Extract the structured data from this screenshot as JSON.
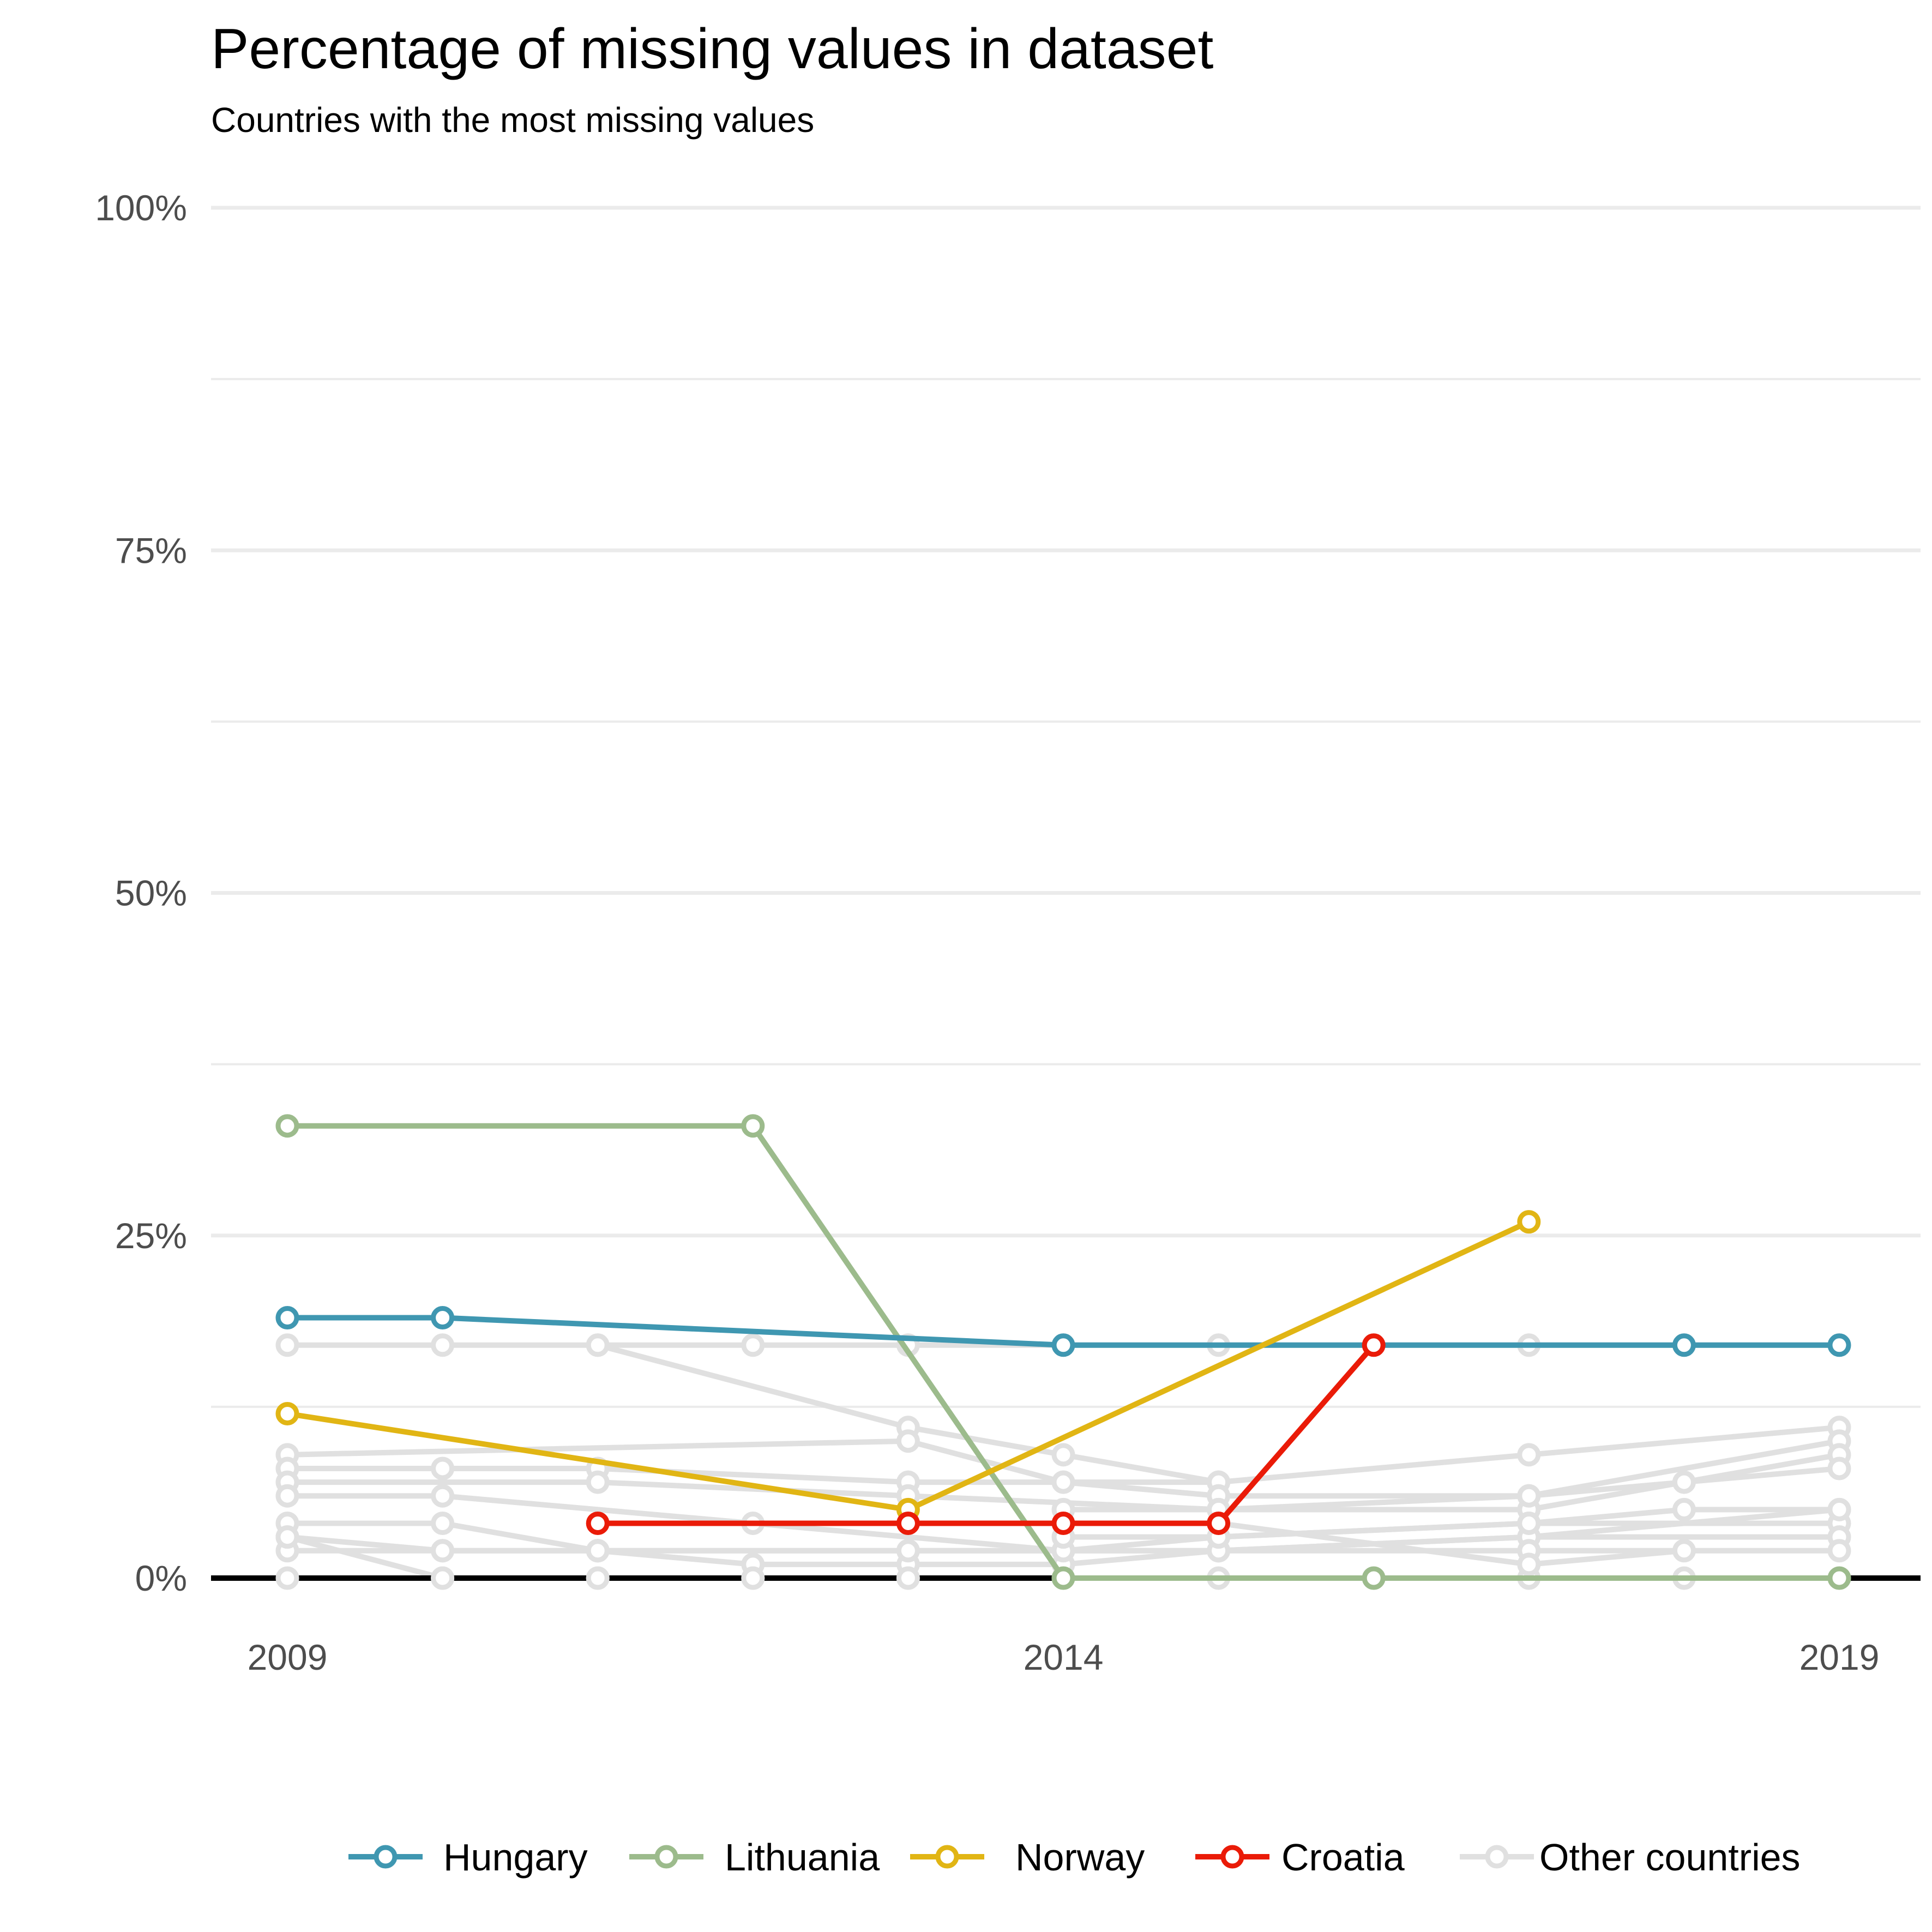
{
  "chart_data": {
    "type": "line",
    "title": "Percentage of missing values in dataset",
    "subtitle": "Countries with the most missing values",
    "xlabel": "",
    "ylabel": "",
    "xlim": [
      2008.5,
      2019.5
    ],
    "ylim": [
      0,
      100
    ],
    "x_ticks": [
      2009,
      2014,
      2019
    ],
    "x_tick_labels": [
      "2009",
      "2014",
      "2019"
    ],
    "y_ticks": [
      0,
      25,
      50,
      75,
      100
    ],
    "y_tick_labels": [
      "0%",
      "25%",
      "50%",
      "75%",
      "100%"
    ],
    "y_minor_ticks": [
      12.5,
      37.5,
      62.5,
      87.5
    ],
    "grid": true,
    "legend_position": "bottom",
    "series": [
      {
        "name": "Other countries",
        "color": "#e0e0e0",
        "background": true,
        "lines": [
          {
            "x": [
              2009,
              2010,
              2011,
              2012,
              2013,
              2014,
              2015,
              2016,
              2017,
              2018,
              2019
            ],
            "y": [
              17,
              17,
              17,
              17,
              17,
              17,
              17,
              17,
              17,
              17,
              17
            ]
          },
          {
            "x": [
              2011,
              2013,
              2014,
              2015
            ],
            "y": [
              17,
              11,
              9,
              7
            ]
          },
          {
            "x": [
              2009,
              2013,
              2014,
              2015,
              2017,
              2019
            ],
            "y": [
              9,
              10,
              7,
              7,
              9,
              11
            ]
          },
          {
            "x": [
              2009,
              2010,
              2011,
              2013,
              2014,
              2015,
              2017,
              2019
            ],
            "y": [
              8,
              8,
              8,
              7,
              7,
              6,
              6,
              10
            ]
          },
          {
            "x": [
              2009,
              2011,
              2013,
              2015,
              2017,
              2018,
              2019
            ],
            "y": [
              7,
              7,
              6,
              5,
              5,
              7,
              9
            ]
          },
          {
            "x": [
              2009,
              2010,
              2012,
              2014,
              2015,
              2017,
              2019
            ],
            "y": [
              6,
              6,
              4,
              2,
              2,
              3,
              5
            ]
          },
          {
            "x": [
              2009,
              2010,
              2011,
              2013,
              2014,
              2015,
              2017,
              2019
            ],
            "y": [
              4,
              4,
              2,
              2,
              2,
              3,
              4,
              4
            ]
          },
          {
            "x": [
              2009,
              2010,
              2011,
              2012,
              2013,
              2014,
              2015,
              2017,
              2019
            ],
            "y": [
              3,
              2,
              2,
              1,
              1,
              1,
              2,
              3,
              3
            ]
          },
          {
            "x": [
              2009,
              2010,
              2011,
              2013,
              2014,
              2015,
              2017,
              2019
            ],
            "y": [
              2,
              2,
              2,
              2,
              2,
              2,
              2,
              2
            ]
          },
          {
            "x": [
              2009,
              2010,
              2011,
              2012,
              2013
            ],
            "y": [
              3,
              0,
              0,
              0,
              0
            ]
          },
          {
            "x": [
              2009,
              2010,
              2011,
              2012,
              2013,
              2014,
              2015,
              2016,
              2017,
              2018,
              2019
            ],
            "y": [
              0,
              0,
              0,
              0,
              0,
              0,
              0,
              0,
              0,
              0,
              0
            ]
          },
          {
            "x": [
              2014,
              2015,
              2017,
              2018,
              2019
            ],
            "y": [
              3,
              3,
              4,
              5,
              5
            ]
          },
          {
            "x": [
              2015,
              2017,
              2018
            ],
            "y": [
              4,
              1,
              2
            ]
          },
          {
            "x": [
              2014,
              2015,
              2017,
              2019
            ],
            "y": [
              5,
              5,
              6,
              8
            ]
          }
        ]
      },
      {
        "name": "Hungary",
        "color": "#3f97b1",
        "x": [
          2009,
          2010,
          2014,
          2019,
          2018
        ],
        "y": [
          19,
          19,
          17,
          17,
          17
        ],
        "points_x": [
          2009,
          2010,
          2014,
          2018,
          2019
        ],
        "points_y": [
          19,
          19,
          17,
          17,
          17
        ]
      },
      {
        "name": "Lithuania",
        "color": "#9cbb8c",
        "points_x": [
          2009,
          2012,
          2014,
          2016,
          2019
        ],
        "points_y": [
          33,
          33,
          0,
          0,
          0
        ]
      },
      {
        "name": "Norway",
        "color": "#e1b514",
        "points_x": [
          2009,
          2013,
          2017
        ],
        "points_y": [
          12,
          5,
          26
        ]
      },
      {
        "name": "Croatia",
        "color": "#ea1b08",
        "points_x": [
          2011,
          2013,
          2014,
          2015,
          2016
        ],
        "points_y": [
          4,
          4,
          4,
          4,
          17
        ]
      }
    ]
  }
}
